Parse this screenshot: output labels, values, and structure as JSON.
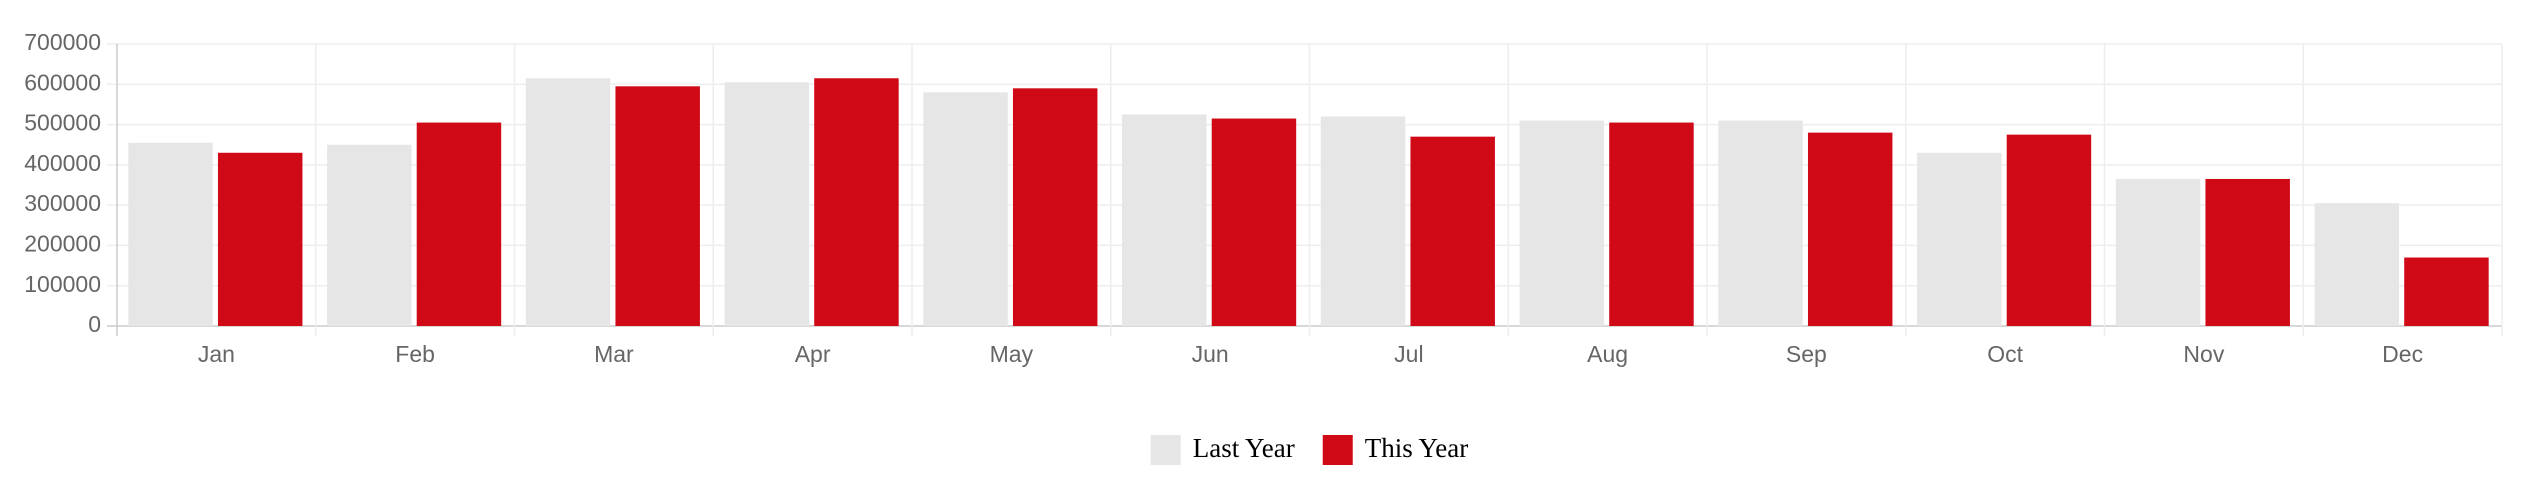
{
  "chart_data": {
    "type": "bar",
    "categories": [
      "Jan",
      "Feb",
      "Mar",
      "Apr",
      "May",
      "Jun",
      "Jul",
      "Aug",
      "Sep",
      "Oct",
      "Nov",
      "Dec"
    ],
    "series": [
      {
        "name": "Last Year",
        "color": "#e6e6e6",
        "values": [
          455000,
          450000,
          615000,
          605000,
          580000,
          525000,
          520000,
          510000,
          510000,
          430000,
          365000,
          305000
        ]
      },
      {
        "name": "This Year",
        "color": "#cf0a16",
        "values": [
          430000,
          505000,
          595000,
          615000,
          590000,
          515000,
          470000,
          505000,
          480000,
          475000,
          365000,
          170000
        ]
      }
    ],
    "ylim": [
      0,
      700000
    ],
    "yticks": [
      0,
      100000,
      200000,
      300000,
      400000,
      500000,
      600000,
      700000
    ],
    "grid": true,
    "legend": "bottom"
  }
}
